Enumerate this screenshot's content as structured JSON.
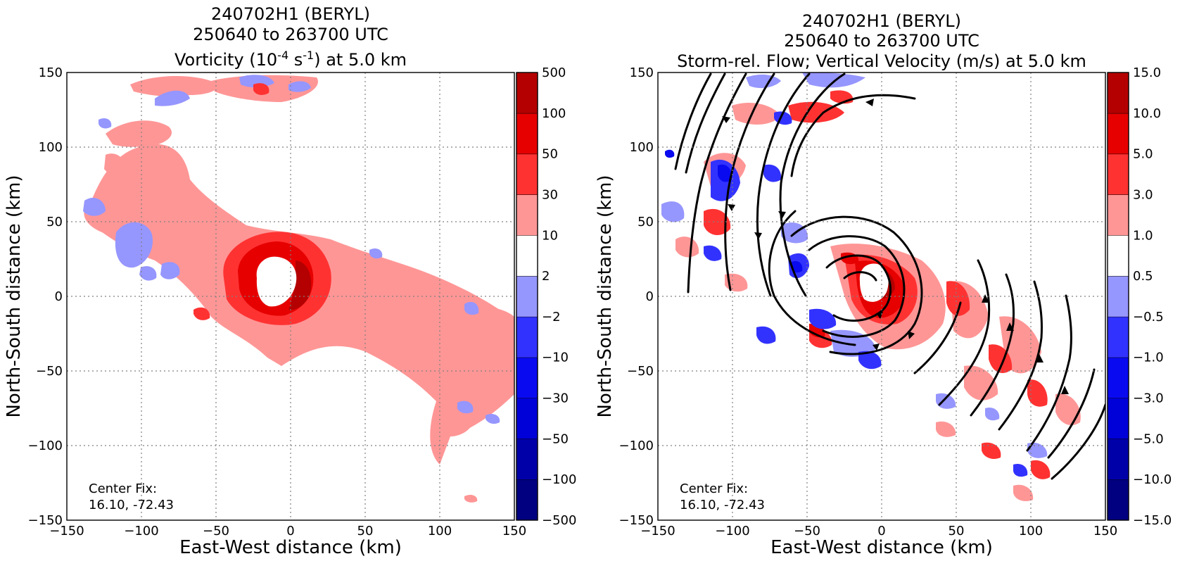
{
  "colors": {
    "levels": [
      "#000080",
      "#0000a8",
      "#0000d8",
      "#0a0af0",
      "#3232ff",
      "#9696ff",
      "#ffffff",
      "#ff9696",
      "#ff3232",
      "#e60000",
      "#b40000",
      "#800000"
    ]
  },
  "chart_data": [
    {
      "type": "heatmap",
      "title_line1": "240702H1 (BERYL)",
      "title_line2": "250640 to 263700 UTC",
      "title_line3_pre": "Vorticity (10",
      "title_line3_sup1": "-4",
      "title_line3_mid": " s",
      "title_line3_sup2": "-1",
      "title_line3_post": ") at 5.0 km",
      "xlabel": "East-West distance (km)",
      "ylabel": "North-South distance (km)",
      "xlim": [
        -150,
        150
      ],
      "ylim": [
        -150,
        150
      ],
      "xticks": [
        "−150",
        "−100",
        "−50",
        "0",
        "50",
        "100",
        "150"
      ],
      "yticks": [
        "−150",
        "−100",
        "−50",
        "0",
        "50",
        "100",
        "150"
      ],
      "grid": true,
      "colorbar_ticks": [
        "−500",
        "−100",
        "−50",
        "−30",
        "−10",
        "−2",
        "2",
        "10",
        "30",
        "50",
        "100",
        "500"
      ],
      "annotation_line1": "Center Fix:",
      "annotation_line2": "16.10, -72.43",
      "center_fix": [
        16.1,
        -72.43
      ]
    },
    {
      "type": "heatmap",
      "title_line1": "240702H1 (BERYL)",
      "title_line2": "250640 to 263700 UTC",
      "title_line3": "Storm-rel. Flow; Vertical Velocity (m/s) at 5.0 km",
      "xlabel": "East-West distance (km)",
      "ylabel": "North-South distance (km)",
      "xlim": [
        -150,
        150
      ],
      "ylim": [
        -150,
        150
      ],
      "xticks": [
        "−150",
        "−100",
        "−50",
        "0",
        "50",
        "100",
        "150"
      ],
      "yticks": [
        "−150",
        "−100",
        "−50",
        "0",
        "50",
        "100",
        "150"
      ],
      "grid": true,
      "colorbar_ticks": [
        "−15.0",
        "−10.0",
        "−5.0",
        "−3.0",
        "−1.0",
        "−0.5",
        "0.5",
        "1.0",
        "3.0",
        "5.0",
        "10.0",
        "15.0"
      ],
      "annotation_line1": "Center Fix:",
      "annotation_line2": "16.10, -72.43",
      "center_fix": [
        16.1,
        -72.43
      ]
    }
  ]
}
